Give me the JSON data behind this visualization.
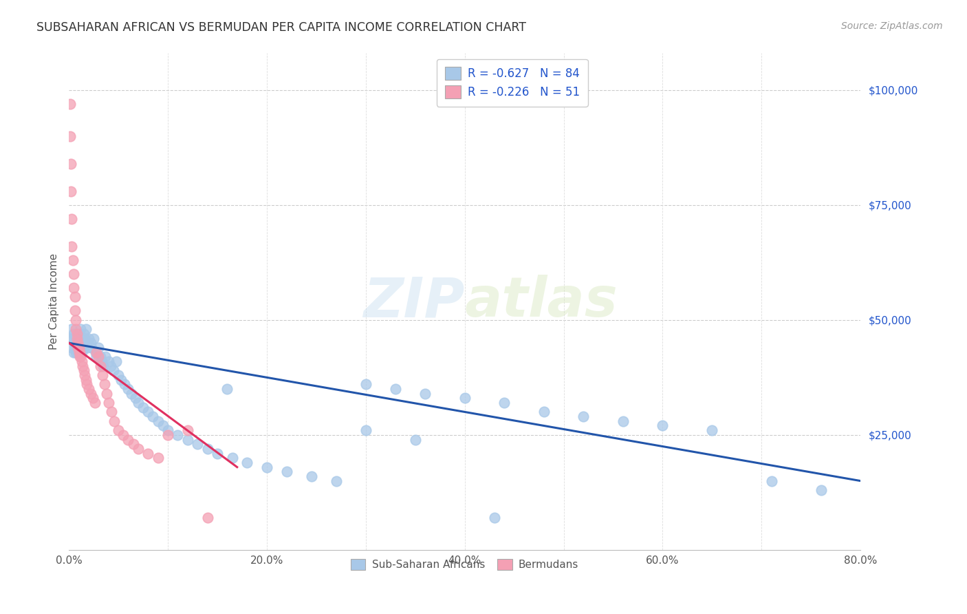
{
  "title": "SUBSAHARAN AFRICAN VS BERMUDAN PER CAPITA INCOME CORRELATION CHART",
  "source": "Source: ZipAtlas.com",
  "ylabel": "Per Capita Income",
  "xlim": [
    0,
    0.8
  ],
  "ylim": [
    0,
    108000
  ],
  "blue_R": -0.627,
  "blue_N": 84,
  "pink_R": -0.226,
  "pink_N": 51,
  "blue_color": "#a8c8e8",
  "blue_line_color": "#2255aa",
  "pink_color": "#f4a0b4",
  "pink_line_color": "#e03060",
  "watermark": "ZIPatlas",
  "legend_label_blue": "Sub-Saharan Africans",
  "legend_label_pink": "Bermudans",
  "blue_scatter_x": [
    0.002,
    0.003,
    0.003,
    0.004,
    0.005,
    0.005,
    0.006,
    0.006,
    0.007,
    0.007,
    0.008,
    0.008,
    0.009,
    0.009,
    0.01,
    0.01,
    0.011,
    0.011,
    0.012,
    0.012,
    0.013,
    0.013,
    0.014,
    0.015,
    0.015,
    0.016,
    0.017,
    0.018,
    0.019,
    0.02,
    0.022,
    0.023,
    0.025,
    0.027,
    0.028,
    0.03,
    0.032,
    0.033,
    0.035,
    0.037,
    0.04,
    0.042,
    0.045,
    0.048,
    0.05,
    0.053,
    0.056,
    0.06,
    0.063,
    0.067,
    0.07,
    0.075,
    0.08,
    0.085,
    0.09,
    0.095,
    0.1,
    0.11,
    0.12,
    0.13,
    0.14,
    0.15,
    0.165,
    0.18,
    0.2,
    0.22,
    0.245,
    0.27,
    0.3,
    0.33,
    0.36,
    0.4,
    0.44,
    0.48,
    0.52,
    0.56,
    0.6,
    0.65,
    0.71,
    0.76,
    0.3,
    0.35,
    0.16,
    0.43
  ],
  "blue_scatter_y": [
    46000,
    48000,
    44000,
    46000,
    47000,
    43000,
    45000,
    44000,
    46000,
    43000,
    45000,
    44000,
    46000,
    43000,
    47000,
    44000,
    46000,
    43000,
    48000,
    44000,
    46000,
    43000,
    45000,
    47000,
    44000,
    46000,
    48000,
    45000,
    44000,
    46000,
    45000,
    44000,
    46000,
    43000,
    42000,
    44000,
    42000,
    41000,
    40000,
    42000,
    41000,
    40000,
    39000,
    41000,
    38000,
    37000,
    36000,
    35000,
    34000,
    33000,
    32000,
    31000,
    30000,
    29000,
    28000,
    27000,
    26000,
    25000,
    24000,
    23000,
    22000,
    21000,
    20000,
    19000,
    18000,
    17000,
    16000,
    15000,
    36000,
    35000,
    34000,
    33000,
    32000,
    30000,
    29000,
    28000,
    27000,
    26000,
    15000,
    13000,
    26000,
    24000,
    35000,
    7000
  ],
  "pink_scatter_x": [
    0.001,
    0.001,
    0.002,
    0.002,
    0.003,
    0.003,
    0.004,
    0.005,
    0.005,
    0.006,
    0.006,
    0.007,
    0.007,
    0.008,
    0.008,
    0.009,
    0.009,
    0.01,
    0.01,
    0.011,
    0.011,
    0.012,
    0.013,
    0.014,
    0.015,
    0.016,
    0.017,
    0.018,
    0.02,
    0.022,
    0.024,
    0.026,
    0.028,
    0.03,
    0.032,
    0.034,
    0.036,
    0.038,
    0.04,
    0.043,
    0.046,
    0.05,
    0.055,
    0.06,
    0.065,
    0.07,
    0.08,
    0.09,
    0.1,
    0.12,
    0.14
  ],
  "pink_scatter_y": [
    97000,
    90000,
    84000,
    78000,
    72000,
    66000,
    63000,
    60000,
    57000,
    55000,
    52000,
    50000,
    48000,
    47000,
    46000,
    45000,
    44000,
    43000,
    44000,
    43000,
    42000,
    42000,
    41000,
    40000,
    39000,
    38000,
    37000,
    36000,
    35000,
    34000,
    33000,
    32000,
    43000,
    42000,
    40000,
    38000,
    36000,
    34000,
    32000,
    30000,
    28000,
    26000,
    25000,
    24000,
    23000,
    22000,
    21000,
    20000,
    25000,
    26000,
    7000
  ],
  "blue_line_x0": 0.0,
  "blue_line_x1": 0.8,
  "blue_line_y0": 45000,
  "blue_line_y1": 15000,
  "pink_line_x0": 0.0,
  "pink_line_x1": 0.17,
  "pink_line_y0": 45000,
  "pink_line_y1": 18000
}
